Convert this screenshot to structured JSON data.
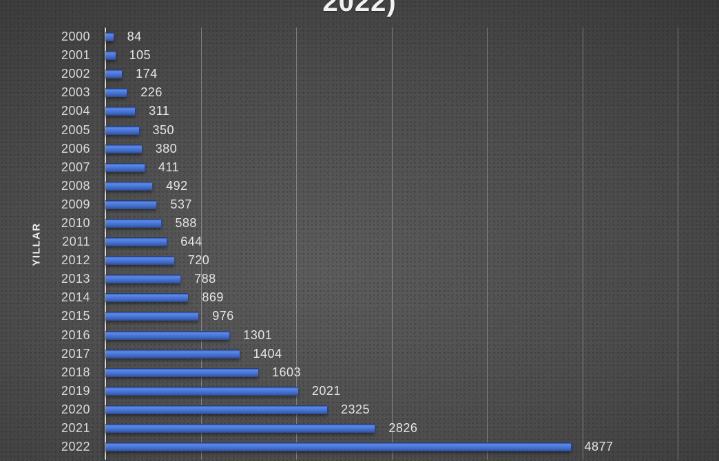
{
  "title_fragment": "2022)",
  "ylabel": "YILLAR",
  "colors": {
    "background_center": "#5d5d5d",
    "background_edge": "#2b2b2b",
    "bar_bright": "#5c8aea",
    "bar_mid": "#4470cd",
    "bar_dark": "#2c4a8e",
    "axis_line": "#d9d9d9",
    "gridline": "#8a8a8a",
    "label_text": "#d9d9d9",
    "title_text": "#f2f2f2"
  },
  "chart_data": {
    "type": "bar",
    "orientation": "horizontal",
    "title": "2022)",
    "title_note": "title cropped at top edge of screenshot; only bottom of text visible",
    "xlabel": "",
    "ylabel": "YILLAR",
    "categories": [
      "2000",
      "2001",
      "2002",
      "2003",
      "2004",
      "2005",
      "2006",
      "2007",
      "2008",
      "2009",
      "2010",
      "2011",
      "2012",
      "2013",
      "2014",
      "2015",
      "2016",
      "2017",
      "2018",
      "2019",
      "2020",
      "2021",
      "2022"
    ],
    "values": [
      84,
      105,
      174,
      226,
      311,
      350,
      380,
      411,
      492,
      537,
      588,
      644,
      720,
      788,
      869,
      976,
      1301,
      1404,
      1603,
      2021,
      2325,
      2826,
      4877
    ],
    "xlim": [
      0,
      6000
    ],
    "gridline_interval": 1000,
    "grid": true,
    "legend": false,
    "data_labels": true
  }
}
